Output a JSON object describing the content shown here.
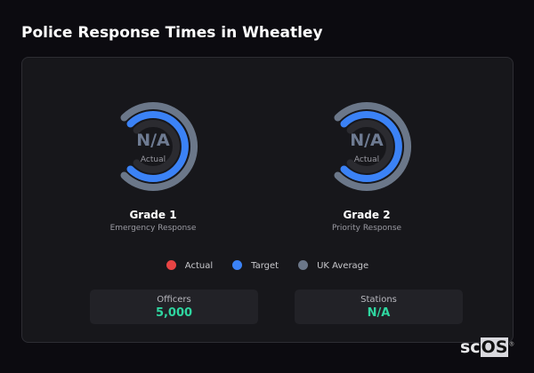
{
  "title": "Police Response Times in Wheatley",
  "gauges": [
    {
      "value": "N/A",
      "sublabel": "Actual",
      "name": "Grade 1",
      "description": "Emergency Response"
    },
    {
      "value": "N/A",
      "sublabel": "Actual",
      "name": "Grade 2",
      "description": "Priority Response"
    }
  ],
  "legend": [
    {
      "label": "Actual",
      "color": "#e84444"
    },
    {
      "label": "Target",
      "color": "#3b82f6"
    },
    {
      "label": "UK Average",
      "color": "#6b7789"
    }
  ],
  "stats": [
    {
      "label": "Officers",
      "value": "5,000"
    },
    {
      "label": "Stations",
      "value": "N/A"
    }
  ],
  "logo": {
    "text_a": "sc",
    "text_b": "OS",
    "mark": "®"
  }
}
